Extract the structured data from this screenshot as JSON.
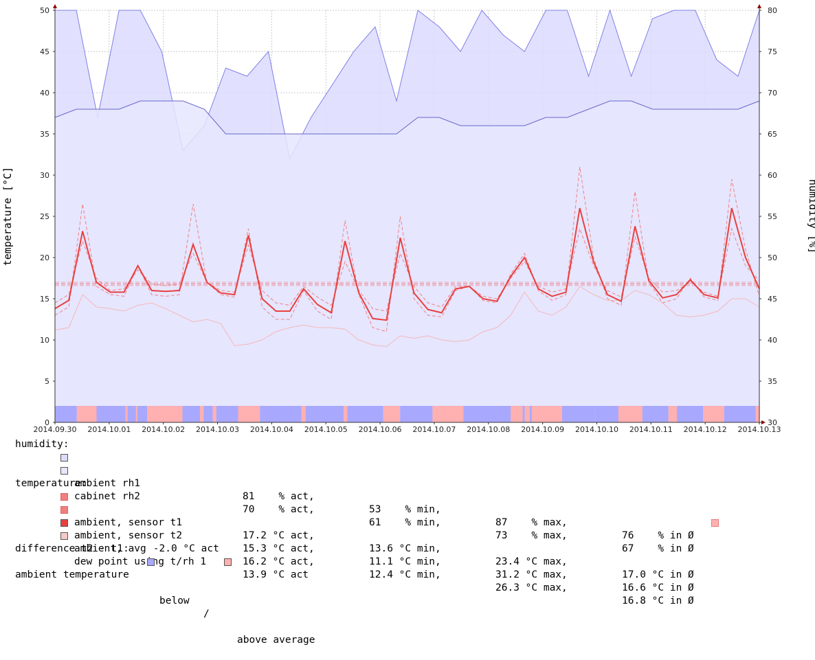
{
  "chart_data": {
    "type": "line",
    "x": [
      "2014.09.30",
      "2014.10.01",
      "2014.10.02",
      "2014.10.03",
      "2014.10.04",
      "2014.10.05",
      "2014.10.06",
      "2014.10.07",
      "2014.10.08",
      "2014.10.09",
      "2014.10.10",
      "2014.10.11",
      "2014.10.12",
      "2014.10.13"
    ],
    "left_axis": {
      "label": "temperature [°C]",
      "ylim": [
        0,
        50
      ],
      "ticks": [
        0,
        5,
        10,
        15,
        20,
        25,
        30,
        35,
        40,
        45,
        50
      ]
    },
    "right_axis": {
      "label": "humidity [%]",
      "ylim": [
        30,
        80
      ],
      "ticks": [
        30,
        35,
        40,
        45,
        50,
        55,
        60,
        65,
        70,
        75,
        80
      ]
    },
    "grid": true,
    "series": {
      "ambient_rh1": [
        80,
        80,
        67,
        80,
        80,
        75,
        63,
        66,
        73,
        72,
        75,
        62,
        67,
        71,
        75,
        78,
        69,
        80,
        78,
        75,
        80,
        77,
        75,
        80,
        80,
        72,
        80,
        72,
        79,
        80,
        80,
        74,
        72,
        80
      ],
      "cabinet_rh2": [
        67,
        68,
        68,
        68,
        69,
        69,
        69,
        68,
        65,
        65,
        65,
        65,
        65,
        65,
        65,
        65,
        65,
        67,
        67,
        66,
        66,
        66,
        66,
        67,
        67,
        68,
        69,
        69,
        68,
        68,
        68,
        68,
        68,
        69
      ],
      "sensor_t1": [
        14.5,
        15.5,
        22,
        17.5,
        16,
        16.2,
        18.5,
        16.8,
        16.6,
        16.8,
        20.5,
        17,
        16,
        15.8,
        21.5,
        16,
        14.5,
        14.2,
        16.5,
        15.2,
        14.2,
        19.5,
        16,
        13.8,
        13.5,
        20.5,
        16.5,
        14.5,
        14,
        16.5,
        16.5,
        15.3,
        15,
        17.5,
        19.5,
        16.5,
        15.8,
        16.2,
        23.5,
        19,
        16,
        15.2,
        22.5,
        17.5,
        15.8,
        16,
        17,
        15.8,
        15.3,
        23.5,
        19,
        17.2
      ],
      "sensor_t2": [
        13,
        14,
        26.5,
        16.5,
        15.5,
        15.3,
        19,
        15.5,
        15.3,
        15.5,
        26.5,
        17,
        15.5,
        15.2,
        23.5,
        14,
        12.5,
        12.5,
        16,
        13.5,
        12.5,
        24.5,
        15.5,
        11.5,
        11,
        25,
        15,
        13,
        12.8,
        16,
        16.5,
        14.8,
        14.5,
        18,
        20.5,
        16,
        14.8,
        15.5,
        31,
        20,
        15,
        14.2,
        28,
        17,
        14.5,
        15,
        17.5,
        15.2,
        14.8,
        29.5,
        21,
        15.3
      ],
      "avg": [
        13.8,
        14.8,
        23.2,
        17,
        15.8,
        15.8,
        19,
        16,
        15.9,
        16,
        21.6,
        17,
        15.7,
        15.5,
        22.7,
        15,
        13.5,
        13.5,
        16.2,
        14.3,
        13.3,
        22,
        15.7,
        12.6,
        12.4,
        22.4,
        15.7,
        13.7,
        13.3,
        16.2,
        16.5,
        15,
        14.7,
        17.7,
        20,
        16.2,
        15.3,
        15.8,
        26,
        19.5,
        15.5,
        14.7,
        23.8,
        17.2,
        15.1,
        15.5,
        17.3,
        15.5,
        15.1,
        26,
        20,
        16.2
      ],
      "dew_point": [
        11.2,
        11.5,
        15.5,
        14,
        13.8,
        13.5,
        14.2,
        14.5,
        13.8,
        13,
        12.2,
        12.5,
        12,
        9.3,
        9.5,
        10,
        11,
        11.5,
        11.8,
        11.5,
        11.5,
        11.3,
        10,
        9.4,
        9.2,
        10.5,
        10.2,
        10.5,
        10,
        9.8,
        10,
        11,
        11.5,
        13,
        15.8,
        13.5,
        13,
        14,
        16.5,
        15.5,
        14.8,
        14.8,
        16,
        15.5,
        14.5,
        13,
        12.8,
        13,
        13.5,
        15,
        15,
        14
      ]
    },
    "ambient_avg_line": 16.8,
    "sensor_t1_avg_line": 17.0,
    "sensor_t2_avg_line": 16.6,
    "indicator": [
      0,
      1,
      0,
      0,
      1,
      0,
      1,
      0,
      0,
      1,
      0,
      1,
      0,
      0,
      1,
      0,
      1,
      0,
      0,
      1,
      0,
      1,
      0,
      0,
      1,
      0,
      0,
      1,
      0,
      1,
      0,
      0,
      1,
      0,
      1,
      0
    ],
    "indicator_breaks": [
      0,
      0.031,
      0.059,
      0.1,
      0.103,
      0.115,
      0.117,
      0.131,
      0.181,
      0.206,
      0.211,
      0.224,
      0.229,
      0.26,
      0.291,
      0.35,
      0.356,
      0.41,
      0.415,
      0.466,
      0.49,
      0.536,
      0.58,
      0.649,
      0.652,
      0.647,
      0.664,
      0.667,
      0.674,
      0.677,
      0.72,
      0.766,
      0.766,
      0.8,
      0.834,
      0.871,
      0.883,
      0.92,
      0.95,
      0.995,
      1.0
    ],
    "colors": {
      "rh1_fill": "#dcdcff",
      "rh1_line": "#7f7fe6",
      "rh2_fill": "#e6e6ff",
      "rh2_line": "#6666c8",
      "t1": "#f08080",
      "t2": "#f08080",
      "avg": "#e84040",
      "dew": "#f5b8b8",
      "below": "#a8a8ff",
      "above": "#ffb0b0"
    }
  },
  "legend": {
    "humidity_header": "humidity:",
    "temperature_header": "temperature:",
    "rows": [
      {
        "name": "ambient rh1",
        "act": "81    % act,",
        "min": "53    % min,",
        "max": "87    % max,",
        "avg": "76    % in Ø"
      },
      {
        "name": "cabinet rh2",
        "act": "70    % act,",
        "min": "61    % min,",
        "max": "73    % max,",
        "avg": "67    % in Ø"
      },
      {
        "name": "ambient, sensor t1",
        "act": "17.2 °C act,",
        "min": "13.6 °C min,",
        "max": "23.4 °C max,",
        "avg": "17.0 °C in Ø"
      },
      {
        "name": "ambient, sensor t2",
        "act": "15.3 °C act,",
        "min": "11.1 °C min,",
        "max": "31.2 °C max,",
        "avg": "16.6 °C in Ø"
      },
      {
        "name": "ambient, avg",
        "act": "16.2 °C act,",
        "min": "12.4 °C min,",
        "max": "26.3 °C max,",
        "avg": "16.8 °C in Ø"
      },
      {
        "name": "dew point using t/rh 1",
        "act": "13.9 °C act",
        "min": "",
        "max": "",
        "avg": ""
      }
    ],
    "difference": "difference t2 - t1:    -2.0 °C act",
    "ambient_temp_label": "ambient temperature",
    "below_label": "below",
    "slash": "/",
    "above_label": "above average"
  }
}
